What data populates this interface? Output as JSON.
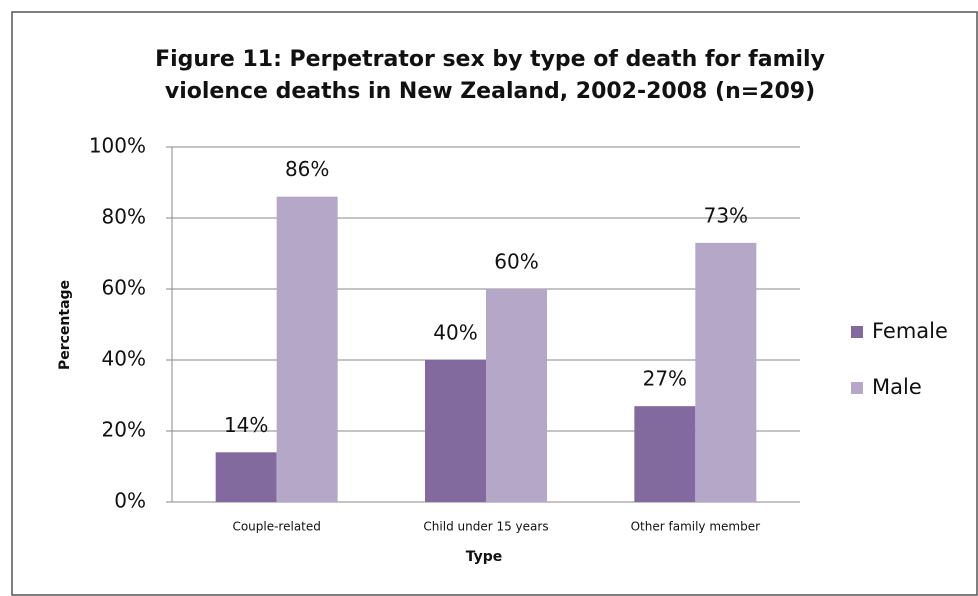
{
  "chart_data": {
    "type": "bar",
    "title": "Figure 11: Perpetrator sex by type of death for family violence deaths in New Zealand, 2002-2008 (n=209)",
    "x_label": "Type",
    "y_label": "Percentage",
    "categories": [
      "Couple-related",
      "Child under 15 years",
      "Other family member"
    ],
    "series": [
      {
        "name": "Female",
        "color": "#826a9e",
        "values": [
          14,
          40,
          27
        ],
        "value_labels": [
          "14%",
          "40%",
          "27%"
        ]
      },
      {
        "name": "Male",
        "color": "#b5a7c8",
        "values": [
          86,
          60,
          73
        ],
        "value_labels": [
          "86%",
          "60%",
          "73%"
        ]
      }
    ],
    "ylim": [
      0,
      100
    ],
    "yticks": [
      {
        "value": 0,
        "label": "0%"
      },
      {
        "value": 20,
        "label": "20%"
      },
      {
        "value": 40,
        "label": "40%"
      },
      {
        "value": 60,
        "label": "60%"
      },
      {
        "value": 80,
        "label": "80%"
      },
      {
        "value": 100,
        "label": "100%"
      }
    ],
    "grid": true,
    "legend": "right"
  }
}
